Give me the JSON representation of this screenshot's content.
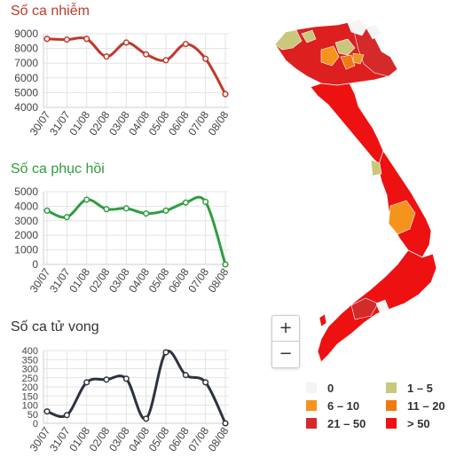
{
  "chart_data": [
    {
      "type": "line",
      "title": "Số ca nhiễm",
      "color": "#c0392b",
      "categories": [
        "30/07",
        "31/07",
        "01/08",
        "02/08",
        "03/08",
        "04/08",
        "05/08",
        "06/08",
        "07/08",
        "08/08"
      ],
      "values": [
        8650,
        8600,
        8650,
        7450,
        8400,
        7600,
        7200,
        8300,
        7300,
        4900
      ],
      "ylim": [
        4000,
        9000
      ],
      "yticks": [
        "4000",
        "5000",
        "6000",
        "7000",
        "8000",
        "9000"
      ],
      "grid": true
    },
    {
      "type": "line",
      "title": "Số ca phục hồi",
      "color": "#2e9e3e",
      "categories": [
        "30/07",
        "31/07",
        "01/08",
        "02/08",
        "03/08",
        "04/08",
        "05/08",
        "06/08",
        "07/08",
        "08/08"
      ],
      "values": [
        3700,
        3250,
        4450,
        3800,
        3850,
        3500,
        3700,
        4250,
        4300,
        0
      ],
      "ylim": [
        0,
        5000
      ],
      "yticks": [
        "0",
        "1000",
        "2000",
        "3000",
        "4000",
        "5000"
      ],
      "grid": true
    },
    {
      "type": "line",
      "title": "Số ca tử vong",
      "color": "#2c3340",
      "categories": [
        "30/07",
        "31/07",
        "01/08",
        "02/08",
        "03/08",
        "04/08",
        "05/08",
        "06/08",
        "07/08",
        "08/08"
      ],
      "values": [
        65,
        45,
        225,
        240,
        245,
        25,
        390,
        265,
        225,
        0
      ],
      "ylim": [
        0,
        400
      ],
      "yticks": [
        "0",
        "50",
        "100",
        "150",
        "200",
        "250",
        "300",
        "350",
        "400"
      ],
      "grid": true
    }
  ],
  "map": {
    "zoom_in_label": "+",
    "zoom_out_label": "−"
  },
  "legend": [
    {
      "label": "0",
      "color": "#f4f4f4"
    },
    {
      "label": "1 – 5",
      "color": "#c8c77b"
    },
    {
      "label": "6 – 10",
      "color": "#f5941d"
    },
    {
      "label": "11 – 20",
      "color": "#f07a12"
    },
    {
      "label": "21 – 50",
      "color": "#d42a2a"
    },
    {
      "label": "> 50",
      "color": "#ee1111"
    }
  ]
}
